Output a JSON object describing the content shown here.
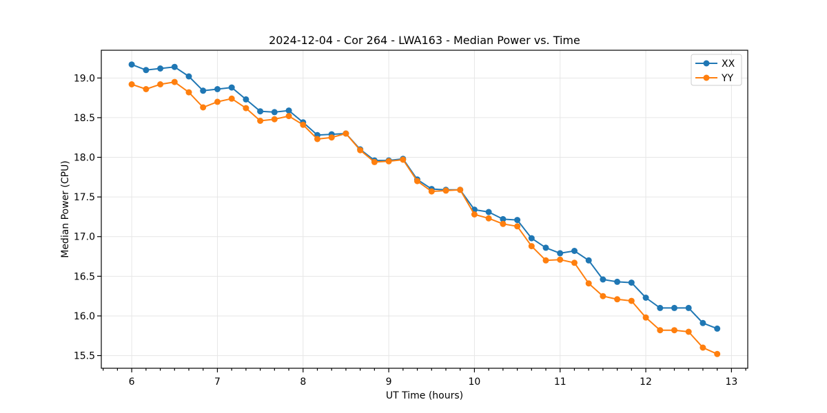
{
  "chart_data": {
    "type": "line",
    "title": "2024-12-04 - Cor 264 - LWA163 - Median Power vs. Time",
    "xlabel": "UT Time (hours)",
    "ylabel": "Median Power (CPU)",
    "xlim": [
      5.645,
      13.19
    ],
    "ylim": [
      15.34,
      19.35
    ],
    "x_ticks": [
      6,
      7,
      8,
      9,
      10,
      11,
      12,
      13
    ],
    "y_ticks": [
      15.5,
      16.0,
      16.5,
      17.0,
      17.5,
      18.0,
      18.5,
      19.0
    ],
    "x_minor_tick_step": 0.166667,
    "grid": true,
    "legend_position": "top-right",
    "grid_color": "#e6e6e6",
    "x": [
      6.0,
      6.1667,
      6.3333,
      6.5,
      6.6667,
      6.8333,
      7.0,
      7.1667,
      7.3333,
      7.5,
      7.6667,
      7.8333,
      8.0,
      8.1667,
      8.3333,
      8.5,
      8.6667,
      8.8333,
      9.0,
      9.1667,
      9.3333,
      9.5,
      9.6667,
      9.8333,
      10.0,
      10.1667,
      10.3333,
      10.5,
      10.6667,
      10.8333,
      11.0,
      11.1667,
      11.3333,
      11.5,
      11.6667,
      11.8333,
      12.0,
      12.1667,
      12.3333,
      12.5,
      12.6667,
      12.8333
    ],
    "series": [
      {
        "name": "XX",
        "color": "#1f77b4",
        "values": [
          19.17,
          19.1,
          19.12,
          19.14,
          19.02,
          18.84,
          18.86,
          18.88,
          18.73,
          18.58,
          18.57,
          18.59,
          18.44,
          18.28,
          18.29,
          18.3,
          18.1,
          17.96,
          17.96,
          17.98,
          17.72,
          17.6,
          17.59,
          17.59,
          17.34,
          17.31,
          17.22,
          17.21,
          16.98,
          16.86,
          16.79,
          16.82,
          16.7,
          16.46,
          16.43,
          16.42,
          16.23,
          16.1,
          16.1,
          16.1,
          15.91,
          15.84
        ]
      },
      {
        "name": "YY",
        "color": "#ff7f0e",
        "values": [
          18.92,
          18.86,
          18.92,
          18.95,
          18.82,
          18.63,
          18.7,
          18.74,
          18.62,
          18.46,
          18.48,
          18.52,
          18.41,
          18.23,
          18.25,
          18.3,
          18.09,
          17.94,
          17.95,
          17.97,
          17.7,
          17.57,
          17.58,
          17.59,
          17.28,
          17.23,
          17.16,
          17.13,
          16.88,
          16.7,
          16.71,
          16.67,
          16.41,
          16.25,
          16.21,
          16.19,
          15.98,
          15.82,
          15.82,
          15.8,
          15.6,
          15.52
        ]
      }
    ]
  }
}
